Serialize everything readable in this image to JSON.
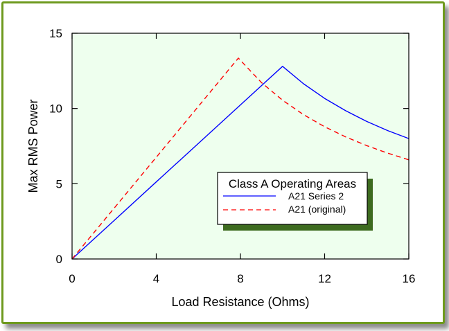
{
  "chart_data": {
    "type": "line",
    "title": "",
    "xlabel": "Load Resistance (Ohms)",
    "ylabel": "Max RMS Power",
    "xlim": [
      0,
      16
    ],
    "ylim": [
      0,
      15
    ],
    "xticks": [
      0,
      4,
      8,
      12,
      16
    ],
    "xtick_labels": [
      "0",
      "4",
      "8",
      "12",
      "16"
    ],
    "yticks": [
      0,
      5,
      10,
      15
    ],
    "ytick_labels": [
      "0",
      "5",
      "10",
      "15"
    ],
    "grid": false,
    "legend": {
      "title": "Class A Operating Areas",
      "placement": "center-right"
    },
    "series": [
      {
        "name": "A21 Series 2",
        "color": "#0000ff",
        "style": "solid",
        "x": [
          0,
          2,
          4,
          6,
          8,
          10,
          11,
          12,
          13,
          14,
          15,
          16
        ],
        "y": [
          0,
          2.56,
          5.12,
          7.68,
          10.24,
          12.8,
          11.64,
          10.67,
          9.85,
          9.14,
          8.53,
          8.0
        ]
      },
      {
        "name": "A21 (original)",
        "color": "#ff0000",
        "style": "dashed",
        "x": [
          0,
          2,
          4,
          6,
          7.9,
          9,
          10,
          11,
          12,
          13,
          14,
          15,
          16
        ],
        "y": [
          0,
          3.38,
          6.76,
          10.14,
          13.35,
          11.72,
          10.55,
          9.59,
          8.79,
          8.11,
          7.53,
          7.03,
          6.59
        ]
      }
    ],
    "plot_background": "#eeffee",
    "legend_shadow_color": "#3d6b1f",
    "frame_color": "#6e9a1e"
  }
}
